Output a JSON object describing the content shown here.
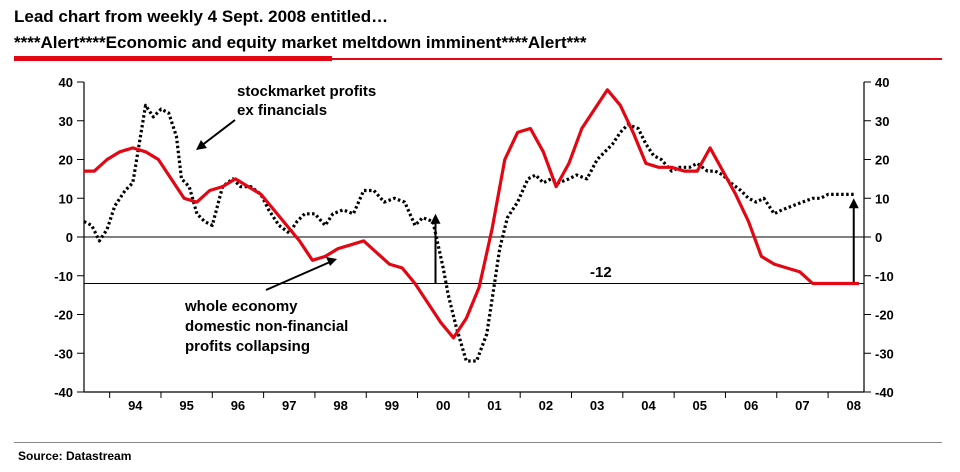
{
  "header": {
    "title_line1": "Lead chart from weekly 4 Sept. 2008 entitled…",
    "title_line2": "****Alert****Economic and equity market meltdown imminent****Alert***"
  },
  "source": "Source: Datastream",
  "colors": {
    "accent_red": "#e30613",
    "profits_series": "#e30613",
    "stockmarket_series": "#000000"
  },
  "chart_data": {
    "type": "line",
    "ylim": [
      -40,
      40
    ],
    "yticks": [
      40,
      30,
      20,
      10,
      0,
      -10,
      -20,
      -30,
      -40
    ],
    "xlim": [
      1993.5,
      2008.7
    ],
    "xticks": [
      {
        "label": "94",
        "x": 1994.5
      },
      {
        "label": "95",
        "x": 1995.5
      },
      {
        "label": "96",
        "x": 1996.5
      },
      {
        "label": "97",
        "x": 1997.5
      },
      {
        "label": "98",
        "x": 1998.5
      },
      {
        "label": "99",
        "x": 1999.5
      },
      {
        "label": "00",
        "x": 2000.5
      },
      {
        "label": "01",
        "x": 2001.5
      },
      {
        "label": "02",
        "x": 2002.5
      },
      {
        "label": "03",
        "x": 2003.5
      },
      {
        "label": "04",
        "x": 2004.5
      },
      {
        "label": "05",
        "x": 2005.5
      },
      {
        "label": "06",
        "x": 2006.5
      },
      {
        "label": "07",
        "x": 2007.5
      },
      {
        "label": "08",
        "x": 2008.5
      }
    ],
    "axes_both_sides": true,
    "grid": false,
    "reference_lines": [
      0,
      -12
    ],
    "series": [
      {
        "name": "stockmarket profits ex financials",
        "style": "dotted",
        "x": [
          1993.5,
          1993.65,
          1993.8,
          1993.95,
          1994.1,
          1994.3,
          1994.45,
          1994.55,
          1994.7,
          1994.85,
          1995.0,
          1995.15,
          1995.3,
          1995.4,
          1995.55,
          1995.7,
          1995.85,
          1996.0,
          1996.2,
          1996.4,
          1996.55,
          1996.75,
          1996.95,
          1997.1,
          1997.3,
          1997.5,
          1997.65,
          1997.8,
          1998.0,
          1998.2,
          1998.35,
          1998.55,
          1998.75,
          1998.95,
          1999.15,
          1999.35,
          1999.55,
          1999.75,
          1999.95,
          2000.1,
          2000.3,
          2000.5,
          2000.6,
          2000.75,
          2000.95,
          2001.15,
          2001.35,
          2001.5,
          2001.6,
          2001.75,
          2001.95,
          2002.15,
          2002.3,
          2002.45,
          2002.6,
          2002.75,
          2002.95,
          2003.1,
          2003.3,
          2003.5,
          2003.65,
          2003.8,
          2003.95,
          2004.1,
          2004.3,
          2004.45,
          2004.6,
          2004.75,
          2004.95,
          2005.1,
          2005.3,
          2005.45,
          2005.65,
          2005.8,
          2005.95,
          2006.1,
          2006.3,
          2006.45,
          2006.6,
          2006.75,
          2006.95,
          2007.1,
          2007.3,
          2007.5,
          2007.7,
          2007.85,
          2008.0,
          2008.2,
          2008.35,
          2008.5
        ],
        "y": [
          4,
          3,
          -1,
          2,
          8,
          12,
          14,
          22,
          34,
          31,
          33,
          32,
          26,
          15,
          13,
          6,
          4,
          3,
          13,
          15,
          13,
          13,
          11,
          7,
          3,
          1,
          4,
          6,
          6,
          3,
          6,
          7,
          6,
          12,
          12,
          9,
          10,
          9,
          3,
          5,
          4,
          -8,
          -15,
          -23,
          -32,
          -32,
          -25,
          -12,
          -3,
          5,
          9,
          15,
          16,
          14,
          15,
          14,
          15,
          16,
          15,
          20,
          22,
          24,
          27,
          29,
          28,
          24,
          21,
          20,
          17,
          18,
          18,
          19,
          17,
          17,
          16,
          14,
          12,
          10,
          9,
          10,
          6,
          7,
          8,
          9,
          10,
          10,
          11,
          11,
          11,
          11
        ],
        "color": "#000000"
      },
      {
        "name": "whole economy domestic non-financial profits collapsing",
        "style": "solid",
        "x": [
          1993.5,
          1993.7,
          1993.95,
          1994.2,
          1994.45,
          1994.7,
          1994.95,
          1995.2,
          1995.45,
          1995.7,
          1995.95,
          1996.2,
          1996.45,
          1996.7,
          1996.95,
          1997.2,
          1997.45,
          1997.7,
          1997.95,
          1998.2,
          1998.45,
          1998.7,
          1998.95,
          1999.2,
          1999.45,
          1999.7,
          1999.95,
          2000.2,
          2000.45,
          2000.7,
          2000.95,
          2001.2,
          2001.45,
          2001.7,
          2001.95,
          2002.2,
          2002.45,
          2002.7,
          2002.95,
          2003.2,
          2003.45,
          2003.7,
          2003.95,
          2004.2,
          2004.45,
          2004.7,
          2004.95,
          2005.2,
          2005.45,
          2005.7,
          2005.95,
          2006.2,
          2006.45,
          2006.7,
          2006.95,
          2007.2,
          2007.45,
          2007.7,
          2007.95,
          2008.2,
          2008.45,
          2008.6
        ],
        "y": [
          17,
          17,
          20,
          22,
          23,
          22,
          20,
          15,
          10,
          9,
          12,
          13,
          15,
          13,
          11,
          7,
          3,
          -1,
          -6,
          -5,
          -3,
          -2,
          -1,
          -4,
          -7,
          -8,
          -12,
          -17,
          -22,
          -26,
          -21,
          -13,
          2,
          20,
          27,
          28,
          22,
          13,
          19,
          28,
          33,
          38,
          34,
          27,
          19,
          18,
          18,
          17,
          17,
          23,
          17,
          11,
          4,
          -5,
          -7,
          -8,
          -9,
          -12,
          -12,
          -12,
          -12,
          -12
        ],
        "color": "#e30613"
      }
    ],
    "annotations": [
      {
        "text_lines": [
          "stockmarket profits",
          "ex financials"
        ]
      },
      {
        "text_lines": [
          "whole economy",
          "domestic non-financial",
          "profits collapsing"
        ]
      },
      {
        "text": "-12"
      }
    ]
  }
}
